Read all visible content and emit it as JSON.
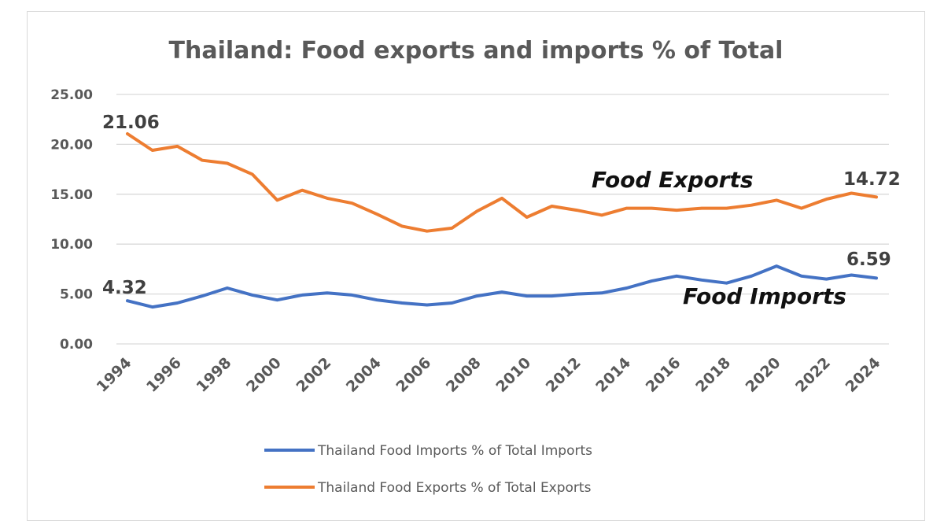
{
  "chart_data": {
    "type": "line",
    "title": "Thailand: Food exports and imports % of Total",
    "xlabel": "",
    "ylabel": "",
    "ylim": [
      0,
      25
    ],
    "y_ticks": [
      "0.00",
      "5.00",
      "10.00",
      "15.00",
      "20.00",
      "25.00"
    ],
    "x_tick_labels": [
      "1994",
      "1996",
      "1998",
      "2000",
      "2002",
      "2004",
      "2006",
      "2008",
      "2010",
      "2012",
      "2014",
      "2016",
      "2018",
      "2020",
      "2022",
      "2024"
    ],
    "x": [
      1994,
      1995,
      1996,
      1997,
      1998,
      1999,
      2000,
      2001,
      2002,
      2003,
      2004,
      2005,
      2006,
      2007,
      2008,
      2009,
      2010,
      2011,
      2012,
      2013,
      2014,
      2015,
      2016,
      2017,
      2018,
      2019,
      2020,
      2021,
      2022,
      2023,
      2024
    ],
    "grid": true,
    "legend_position": "bottom",
    "series": [
      {
        "name": "Thailand Food Imports % of Total Imports",
        "color": "#4472c4",
        "values": [
          4.32,
          3.7,
          4.1,
          4.8,
          5.6,
          4.9,
          4.4,
          4.9,
          5.1,
          4.9,
          4.4,
          4.1,
          3.9,
          4.1,
          4.8,
          5.2,
          4.8,
          4.8,
          5.0,
          5.1,
          5.6,
          6.3,
          6.8,
          6.4,
          6.1,
          6.8,
          7.8,
          6.8,
          6.5,
          6.9,
          6.59
        ],
        "end_label": "6.59",
        "start_label": "4.32",
        "annotation": "Food Imports"
      },
      {
        "name": "Thailand Food Exports % of Total Exports",
        "color": "#ed7d31",
        "values": [
          21.06,
          19.4,
          19.8,
          18.4,
          18.1,
          17.0,
          14.4,
          15.4,
          14.6,
          14.1,
          13.0,
          11.8,
          11.3,
          11.6,
          13.3,
          14.6,
          12.7,
          13.8,
          13.4,
          12.9,
          13.6,
          13.6,
          13.4,
          13.6,
          13.6,
          13.9,
          14.4,
          13.6,
          14.5,
          15.1,
          14.72
        ],
        "end_label": "14.72",
        "start_label": "21.06",
        "annotation": "Food Exports"
      }
    ]
  }
}
